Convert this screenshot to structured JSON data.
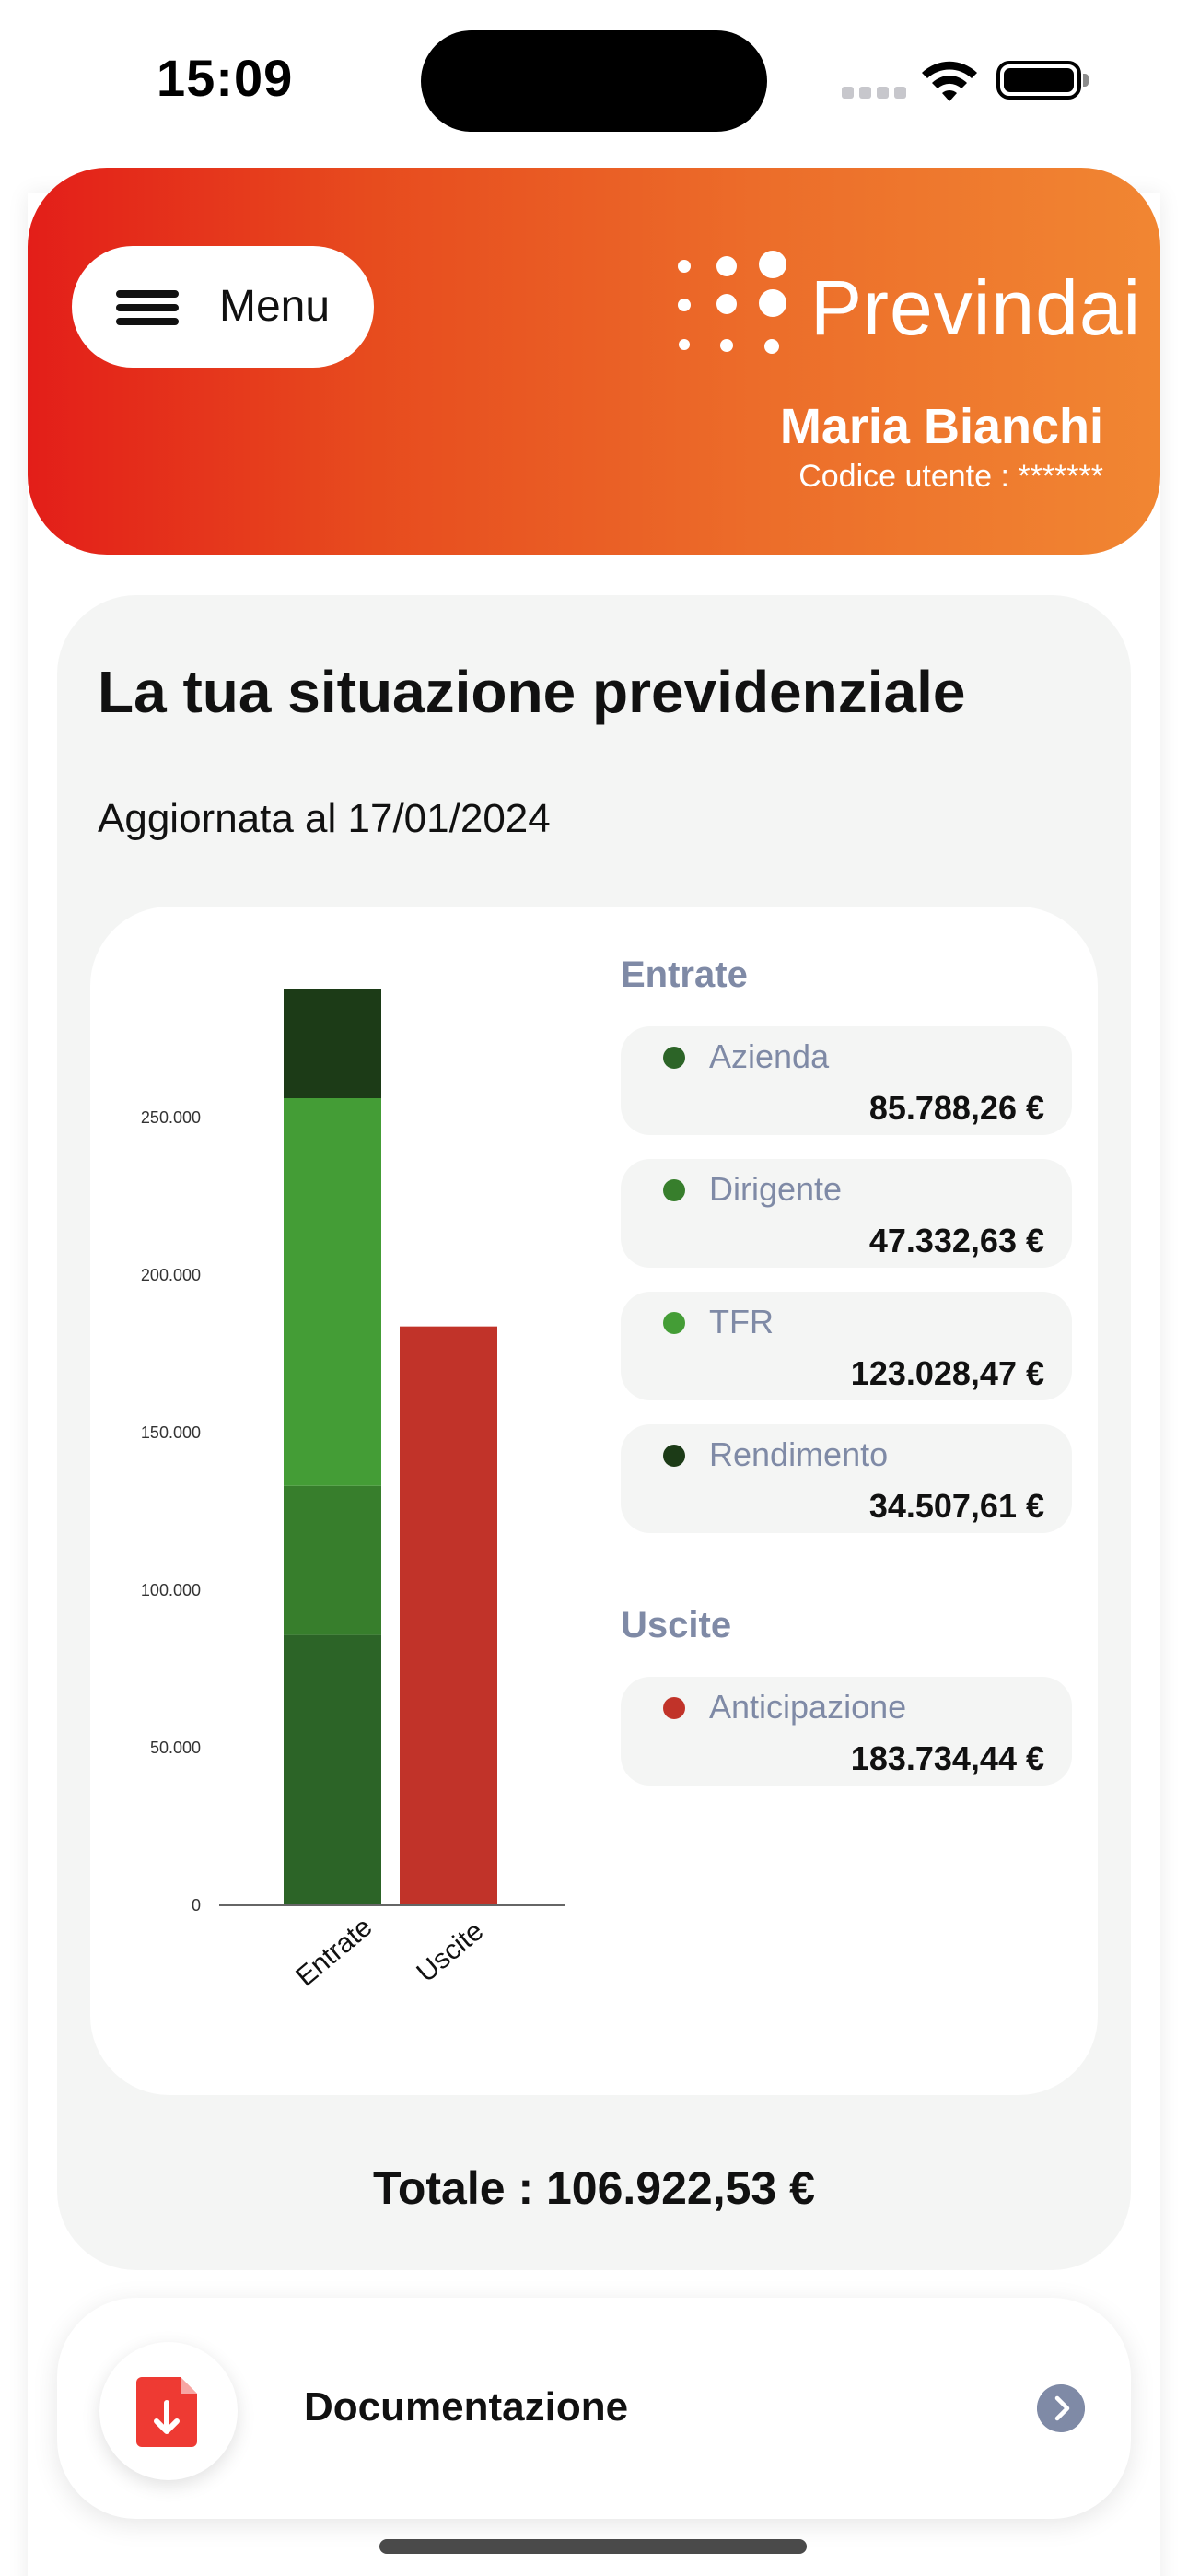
{
  "status_bar": {
    "time": "15:09"
  },
  "header": {
    "menu_label": "Menu",
    "logo_text": "Previndai",
    "user_name": "Maria Bianchi",
    "user_code": "Codice utente : *******"
  },
  "situation": {
    "title": "La tua situazione previdenziale",
    "updated": "Aggiornata al 17/01/2024",
    "entrate_heading": "Entrate",
    "uscite_heading": "Uscite",
    "entrate": [
      {
        "name": "Azienda",
        "value": "85.788,26 €",
        "color": "#2c6427"
      },
      {
        "name": "Dirigente",
        "value": "47.332,63 €",
        "color": "#377e2c"
      },
      {
        "name": "TFR",
        "value": "123.028,47 €",
        "color": "#449d36"
      },
      {
        "name": "Rendimento",
        "value": "34.507,61 €",
        "color": "#1c3b17"
      }
    ],
    "uscite": [
      {
        "name": "Anticipazione",
        "value": "183.734,44 €",
        "color": "#c13329"
      }
    ],
    "total": "Totale : 106.922,53  €"
  },
  "chart_data": {
    "type": "bar",
    "stacked": true,
    "categories": [
      "Entrate",
      "Uscite"
    ],
    "series": [
      {
        "name": "Azienda",
        "values": [
          85788.26,
          0
        ],
        "color": "#2c6427"
      },
      {
        "name": "Dirigente",
        "values": [
          47332.63,
          0
        ],
        "color": "#377e2c"
      },
      {
        "name": "TFR",
        "values": [
          123028.47,
          0
        ],
        "color": "#449d36"
      },
      {
        "name": "Rendimento",
        "values": [
          34507.61,
          0
        ],
        "color": "#1c3b17"
      },
      {
        "name": "Anticipazione",
        "values": [
          0,
          183734.44
        ],
        "color": "#c13329"
      }
    ],
    "y_ticks": [
      "0",
      "50.000",
      "100.000",
      "150.000",
      "200.000",
      "250.000"
    ],
    "y_tick_values": [
      0,
      50000,
      100000,
      150000,
      200000,
      250000
    ],
    "ylim": [
      0,
      290657
    ],
    "grid": false
  },
  "documentation": {
    "label": "Documentazione",
    "icon": "pdf-download-icon"
  }
}
